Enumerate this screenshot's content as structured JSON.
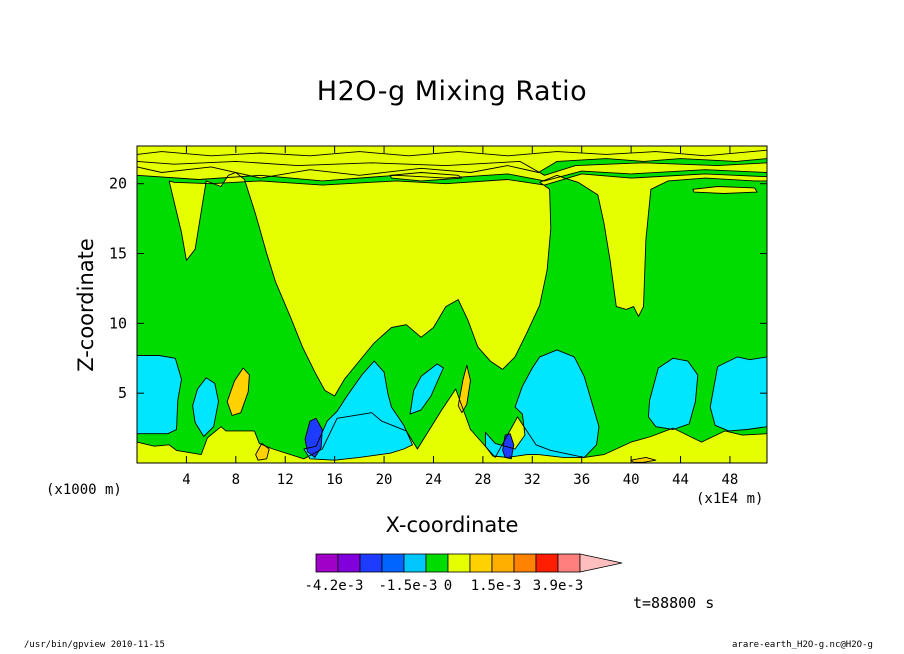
{
  "chart_data": {
    "type": "heatmap",
    "title": "H2O-g Mixing Ratio",
    "xlabel": "X-coordinate",
    "ylabel": "Z-coordinate",
    "x_unit_note": "(x1000 m)",
    "x_scale_note": "(x1E4 m)",
    "xlim": [
      0,
      51
    ],
    "ylim": [
      0,
      22.7
    ],
    "x_ticks": [
      4,
      8,
      12,
      16,
      20,
      24,
      28,
      32,
      36,
      40,
      44,
      48
    ],
    "y_ticks": [
      5,
      10,
      15,
      20
    ],
    "timestamp": "t=88800 s",
    "colorbar": {
      "colors": [
        "#a000c8",
        "#8200dc",
        "#1e3cff",
        "#0064ff",
        "#00c8ff",
        "#00dc00",
        "#e6ff00",
        "#ffd200",
        "#ffaf00",
        "#ff8200",
        "#ff1e00",
        "#ff7f7f",
        "#ffbebe"
      ],
      "labels": [
        "-4.2e-3",
        "-1.5e-3",
        "0",
        "1.5e-3",
        "3.9e-3"
      ]
    },
    "colors": {
      "background_level": "#e6ff00",
      "mid_level": "#00dc00",
      "low_level": "#00e6ff",
      "warm_level": "#ffd200",
      "min_level": "#1e3cff"
    },
    "regions": [
      {
        "level": "mid",
        "points": [
          [
            0,
            1.5
          ],
          [
            1.4,
            1.2
          ],
          [
            2.6,
            1.3
          ],
          [
            3.2,
            0.9
          ],
          [
            5.2,
            0.6
          ],
          [
            5.7,
            1.8
          ],
          [
            6.8,
            2.6
          ],
          [
            7.2,
            2.3
          ],
          [
            9.5,
            2.3
          ],
          [
            9.9,
            1.4
          ],
          [
            11,
            1.0
          ],
          [
            13.5,
            0.3
          ],
          [
            15,
            1.0
          ],
          [
            16.2,
            3.2
          ],
          [
            19,
            3.6
          ],
          [
            19.8,
            3.0
          ],
          [
            21.8,
            2.3
          ],
          [
            22.7,
            1.0
          ],
          [
            24.6,
            3.7
          ],
          [
            25.8,
            5.3
          ],
          [
            27,
            2.4
          ],
          [
            29,
            0.4
          ],
          [
            30.8,
            3.3
          ],
          [
            32.3,
            1.3
          ],
          [
            33.5,
            0.9
          ],
          [
            36.2,
            0.4
          ],
          [
            37.8,
            0.6
          ],
          [
            40,
            1.5
          ],
          [
            41.6,
            1.9
          ],
          [
            43.4,
            2.5
          ],
          [
            45.7,
            1.5
          ],
          [
            47.6,
            2.3
          ],
          [
            49,
            2.0
          ],
          [
            51,
            2.1
          ],
          [
            51,
            21.8
          ],
          [
            48.5,
            21.6
          ],
          [
            44,
            21.8
          ],
          [
            41,
            21.6
          ],
          [
            38,
            21.8
          ],
          [
            34,
            21.6
          ],
          [
            32.5,
            20.8
          ],
          [
            30,
            21.3
          ],
          [
            27,
            20.8
          ],
          [
            23,
            21.1
          ],
          [
            18,
            20.6
          ],
          [
            14,
            21
          ],
          [
            10,
            20.4
          ],
          [
            6,
            21.2
          ],
          [
            2,
            20.8
          ],
          [
            0,
            21.2
          ]
        ]
      },
      {
        "level": "bg",
        "points": [
          [
            0,
            22.1
          ],
          [
            2,
            22.3
          ],
          [
            6,
            22.0
          ],
          [
            10,
            22.2
          ],
          [
            14,
            22.0
          ],
          [
            18,
            22.3
          ],
          [
            22,
            22.0
          ],
          [
            26,
            22.3
          ],
          [
            30,
            22.0
          ],
          [
            34,
            22.3
          ],
          [
            38,
            22.1
          ],
          [
            42,
            22.3
          ],
          [
            46,
            22.0
          ],
          [
            51,
            22.4
          ],
          [
            51,
            22.7
          ],
          [
            0,
            22.7
          ]
        ]
      },
      {
        "level": "bg",
        "points": [
          [
            0,
            21.6
          ],
          [
            3,
            21.4
          ],
          [
            8,
            21.6
          ],
          [
            13,
            21.3
          ],
          [
            19,
            21.5
          ],
          [
            25,
            21.3
          ],
          [
            31,
            21.6
          ],
          [
            33,
            20.6
          ],
          [
            35.5,
            21.3
          ],
          [
            41,
            21.5
          ],
          [
            47,
            21.3
          ],
          [
            51,
            21.5
          ],
          [
            51,
            20.8
          ],
          [
            46,
            21.0
          ],
          [
            40,
            20.7
          ],
          [
            36,
            20.9
          ],
          [
            33,
            20.2
          ],
          [
            30,
            20.7
          ],
          [
            25,
            20.4
          ],
          [
            21,
            20.6
          ],
          [
            15,
            20.2
          ],
          [
            10,
            20.6
          ],
          [
            5,
            20.3
          ],
          [
            0,
            20.6
          ]
        ]
      },
      {
        "level": "bg",
        "points": [
          [
            2.6,
            20.2
          ],
          [
            3.6,
            16.5
          ],
          [
            4.0,
            14.5
          ],
          [
            4.7,
            15.3
          ],
          [
            5.6,
            20.2
          ],
          [
            6.8,
            19.8
          ],
          [
            7.4,
            20.6
          ],
          [
            8,
            20.8
          ],
          [
            8.7,
            20.3
          ],
          [
            9.6,
            17.8
          ],
          [
            10.5,
            15
          ],
          [
            11.2,
            13
          ],
          [
            12.4,
            10.5
          ],
          [
            13.4,
            8.3
          ],
          [
            14.4,
            6.5
          ],
          [
            15.2,
            5.2
          ],
          [
            16,
            4.8
          ],
          [
            16.8,
            6.0
          ],
          [
            17.9,
            7.2
          ],
          [
            19.2,
            8.6
          ],
          [
            20.6,
            9.7
          ],
          [
            21.8,
            9.9
          ],
          [
            23,
            9.0
          ],
          [
            24,
            9.7
          ],
          [
            25,
            11.2
          ],
          [
            26,
            11.7
          ],
          [
            26.8,
            10.2
          ],
          [
            27.6,
            8.3
          ],
          [
            28.6,
            7.3
          ],
          [
            29.6,
            6.7
          ],
          [
            30.6,
            7.6
          ],
          [
            31.6,
            9.4
          ],
          [
            32.6,
            11.3
          ],
          [
            33.2,
            13.8
          ],
          [
            33.5,
            16.8
          ],
          [
            33.4,
            19.6
          ],
          [
            32.6,
            20.1
          ],
          [
            34,
            20.6
          ],
          [
            34.6,
            20.4
          ],
          [
            35.7,
            20.1
          ],
          [
            37.3,
            19.2
          ],
          [
            37.8,
            17.2
          ],
          [
            38.3,
            14.5
          ],
          [
            38.8,
            11.2
          ],
          [
            39.6,
            11.0
          ],
          [
            40.2,
            11.2
          ],
          [
            40.6,
            10.5
          ],
          [
            41,
            11.2
          ],
          [
            41.2,
            16
          ],
          [
            41.6,
            19.6
          ],
          [
            43,
            20.2
          ],
          [
            46,
            20.4
          ],
          [
            50,
            20.2
          ],
          [
            51,
            20.2
          ],
          [
            51,
            20.5
          ],
          [
            46,
            20.7
          ],
          [
            40,
            20.4
          ],
          [
            36,
            20.7
          ],
          [
            33,
            19.9
          ],
          [
            30,
            20.3
          ],
          [
            25,
            20.0
          ],
          [
            21,
            20.2
          ],
          [
            15,
            19.9
          ],
          [
            10,
            20.2
          ],
          [
            6,
            20.0
          ],
          [
            3,
            20.1
          ],
          [
            2.6,
            20.2
          ]
        ]
      },
      {
        "level": "bg",
        "points": [
          [
            20.5,
            20.6
          ],
          [
            23,
            20.8
          ],
          [
            26,
            20.6
          ],
          [
            26.3,
            20.4
          ],
          [
            23,
            20.2
          ],
          [
            20.6,
            20.4
          ]
        ]
      },
      {
        "level": "bg",
        "points": [
          [
            45,
            19.6
          ],
          [
            47,
            19.8
          ],
          [
            50,
            19.7
          ],
          [
            50.2,
            19.4
          ],
          [
            47.5,
            19.3
          ],
          [
            45.1,
            19.4
          ]
        ]
      },
      {
        "level": "low",
        "points": [
          [
            0,
            7.7
          ],
          [
            1.8,
            7.7
          ],
          [
            3.1,
            7.5
          ],
          [
            3.6,
            6.0
          ],
          [
            3.3,
            4.5
          ],
          [
            3.2,
            2.4
          ],
          [
            2.5,
            2.1
          ],
          [
            0,
            2.1
          ]
        ]
      },
      {
        "level": "low",
        "points": [
          [
            4.7,
            2.9
          ],
          [
            5.4,
            1.9
          ],
          [
            6.2,
            2.6
          ],
          [
            6.6,
            4.4
          ],
          [
            6.3,
            5.7
          ],
          [
            5.6,
            6.1
          ],
          [
            4.9,
            5.3
          ],
          [
            4.5,
            4.1
          ]
        ]
      },
      {
        "level": "low",
        "points": [
          [
            13.5,
            1.0
          ],
          [
            14.5,
            1.2
          ],
          [
            15.4,
            3.0
          ],
          [
            16.2,
            3.7
          ],
          [
            17,
            4.8
          ],
          [
            18.2,
            6.3
          ],
          [
            19.2,
            7.3
          ],
          [
            20,
            6.5
          ],
          [
            20.3,
            5.0
          ],
          [
            20.6,
            4.0
          ],
          [
            21.6,
            2.7
          ],
          [
            22.3,
            1.3
          ],
          [
            21.6,
            1.0
          ],
          [
            20.5,
            0.7
          ],
          [
            18,
            0.4
          ],
          [
            16,
            0.2
          ],
          [
            14,
            0.3
          ]
        ]
      },
      {
        "level": "low",
        "points": [
          [
            22.1,
            3.5
          ],
          [
            23,
            3.8
          ],
          [
            23.8,
            4.8
          ],
          [
            24.4,
            6.0
          ],
          [
            24.8,
            6.8
          ],
          [
            24.3,
            7.1
          ],
          [
            23,
            6.2
          ],
          [
            22.4,
            5.2
          ]
        ]
      },
      {
        "level": "low",
        "points": [
          [
            28.2,
            2.2
          ],
          [
            29,
            1.4
          ],
          [
            30.6,
            1.0
          ],
          [
            31.4,
            2.0
          ],
          [
            31.2,
            3.5
          ],
          [
            30.6,
            4.0
          ],
          [
            31.2,
            5.5
          ],
          [
            32,
            6.8
          ],
          [
            32.6,
            7.6
          ],
          [
            34,
            8.1
          ],
          [
            35.4,
            7.6
          ],
          [
            36.2,
            6.2
          ],
          [
            36.8,
            4.4
          ],
          [
            37.4,
            2.6
          ],
          [
            37.2,
            1.3
          ],
          [
            36.2,
            0.4
          ],
          [
            34.5,
            0.4
          ],
          [
            32.5,
            0.6
          ],
          [
            31.6,
            0.6
          ],
          [
            30,
            0.4
          ],
          [
            28.8,
            0.5
          ],
          [
            28.2,
            1.2
          ]
        ]
      },
      {
        "level": "low",
        "points": [
          [
            41.5,
            4.5
          ],
          [
            42.2,
            6.8
          ],
          [
            43.4,
            7.5
          ],
          [
            44.6,
            7.3
          ],
          [
            45.4,
            6.3
          ],
          [
            45.2,
            4.4
          ],
          [
            44.7,
            2.8
          ],
          [
            43.4,
            2.4
          ],
          [
            42,
            2.6
          ],
          [
            41.4,
            3.3
          ]
        ]
      },
      {
        "level": "low",
        "points": [
          [
            46.4,
            4.0
          ],
          [
            47,
            6.9
          ],
          [
            48.6,
            7.6
          ],
          [
            49.6,
            7.4
          ],
          [
            51,
            7.6
          ],
          [
            51,
            2.6
          ],
          [
            49.4,
            2.4
          ],
          [
            47.9,
            2.3
          ],
          [
            46.8,
            2.7
          ]
        ]
      },
      {
        "level": "warm",
        "points": [
          [
            7.3,
            4.4
          ],
          [
            7.9,
            5.9
          ],
          [
            8.6,
            6.8
          ],
          [
            9.1,
            6.3
          ],
          [
            9.0,
            5.1
          ],
          [
            8.4,
            3.6
          ],
          [
            7.7,
            3.4
          ]
        ]
      },
      {
        "level": "warm",
        "points": [
          [
            26,
            4.1
          ],
          [
            26.4,
            6.0
          ],
          [
            26.7,
            7.0
          ],
          [
            27,
            5.9
          ],
          [
            26.7,
            4.2
          ],
          [
            26.3,
            3.6
          ]
        ]
      },
      {
        "level": "warm",
        "points": [
          [
            9.6,
            0.6
          ],
          [
            10.1,
            1.4
          ],
          [
            10.7,
            1.0
          ],
          [
            10.5,
            0.3
          ],
          [
            9.8,
            0.2
          ]
        ]
      },
      {
        "level": "warm",
        "points": [
          [
            40,
            0.2
          ],
          [
            41.2,
            0.4
          ],
          [
            42,
            0.2
          ],
          [
            41,
            0.05
          ],
          [
            40.2,
            0.05
          ]
        ]
      },
      {
        "level": "min",
        "points": [
          [
            13.6,
            1.7
          ],
          [
            14,
            3.0
          ],
          [
            14.5,
            3.2
          ],
          [
            15,
            2.4
          ],
          [
            14.9,
            1.1
          ],
          [
            14.4,
            0.4
          ],
          [
            13.8,
            0.8
          ]
        ]
      },
      {
        "level": "min",
        "points": [
          [
            29.6,
            0.9
          ],
          [
            29.8,
            2.0
          ],
          [
            30.2,
            2.1
          ],
          [
            30.5,
            1.3
          ],
          [
            30.3,
            0.3
          ],
          [
            29.8,
            0.4
          ]
        ]
      }
    ]
  },
  "labels": {
    "timestamp": "t=88800 s",
    "footer_left": "/usr/bin/gpview  2010-11-15",
    "footer_right": "arare-earth_H2O-g.nc@H2O-g"
  }
}
